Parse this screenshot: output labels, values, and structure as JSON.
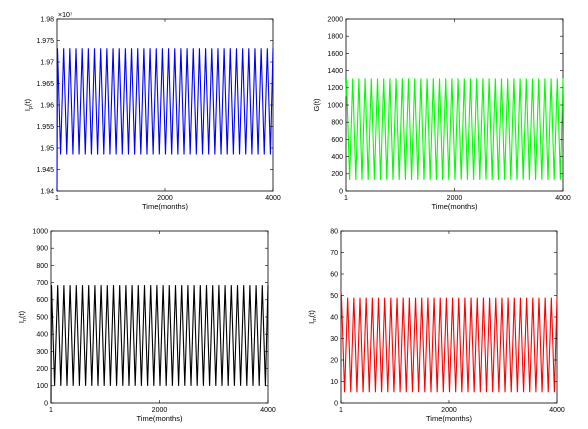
{
  "chart_data": [
    {
      "type": "line",
      "panel": "top-left",
      "xlabel": "Time(months)",
      "ylabel": "I_p(t)",
      "ylabel_main": "I",
      "ylabel_sub": "p",
      "ylabel_tail": "(t)",
      "exponent_label": "×10⁷",
      "x_range": [
        1,
        4000
      ],
      "ylim": [
        1.94,
        1.98
      ],
      "xticks": [
        1,
        2000,
        4000
      ],
      "yticks": [
        1.94,
        1.945,
        1.95,
        1.955,
        1.96,
        1.965,
        1.97,
        1.975,
        1.98
      ],
      "color": "#0000ff",
      "series": [
        {
          "oscillation": {
            "min": 1.9485,
            "max": 1.9732,
            "cycles": 35,
            "initial_value": 1.94
          }
        }
      ],
      "grid": false
    },
    {
      "type": "line",
      "panel": "top-right",
      "xlabel": "Time(months)",
      "ylabel": "G(t)",
      "x_range": [
        1,
        4000
      ],
      "ylim": [
        0,
        2000
      ],
      "xticks": [
        1,
        2000,
        4000
      ],
      "yticks": [
        0,
        200,
        400,
        600,
        800,
        1000,
        1200,
        1400,
        1600,
        1800,
        2000
      ],
      "color": "#00ff00",
      "series": [
        {
          "oscillation": {
            "min": 130,
            "max": 1310,
            "cycles": 35,
            "initial_value": 1100
          }
        }
      ],
      "grid": false
    },
    {
      "type": "line",
      "panel": "bottom-left",
      "xlabel": "Time(months)",
      "ylabel": "I_n(t)",
      "ylabel_main": "I",
      "ylabel_sub": "n",
      "ylabel_tail": "(t)",
      "x_range": [
        1,
        4000
      ],
      "ylim": [
        0,
        1000
      ],
      "xticks": [
        1,
        2000,
        4000
      ],
      "yticks": [
        0,
        100,
        200,
        300,
        400,
        500,
        600,
        700,
        800,
        900,
        1000
      ],
      "color": "#000000",
      "series": [
        {
          "oscillation": {
            "min": 100,
            "max": 685,
            "cycles": 35,
            "initial_value": 0
          }
        }
      ],
      "grid": false
    },
    {
      "type": "line",
      "panel": "bottom-right",
      "xlabel": "Time(months)",
      "ylabel": "I_m(t)",
      "ylabel_main": "I",
      "ylabel_sub": "m",
      "ylabel_tail": "(t)",
      "x_range": [
        1,
        4000
      ],
      "ylim": [
        0,
        80
      ],
      "xticks": [
        1,
        2000,
        4000
      ],
      "yticks": [
        0,
        10,
        20,
        30,
        40,
        50,
        60,
        70,
        80
      ],
      "color": "#ff0000",
      "series": [
        {
          "oscillation": {
            "min": 5,
            "max": 49,
            "cycles": 35,
            "initial_value": 52
          }
        }
      ],
      "grid": false
    }
  ]
}
